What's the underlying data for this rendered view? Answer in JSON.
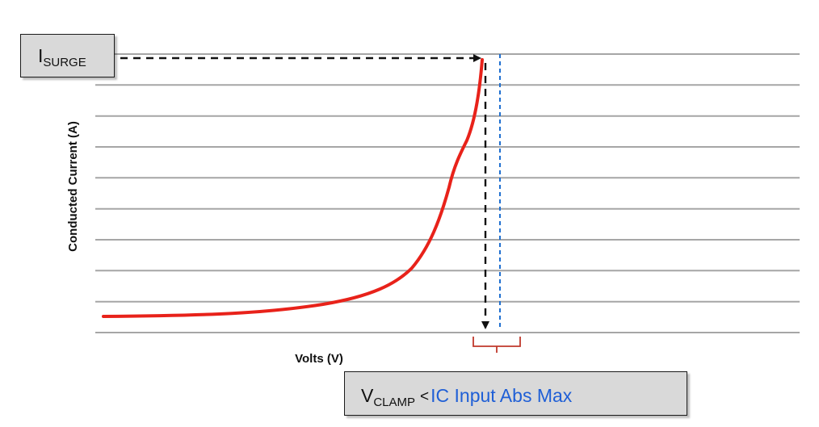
{
  "chart_data": {
    "type": "line",
    "title": "",
    "xlabel": "Volts (V)",
    "ylabel": "Conducted Current (A)",
    "gridlines": 10,
    "legend": "none",
    "series": [
      {
        "color": "#e8221a"
      }
    ]
  },
  "annotations": {
    "isurge": {
      "main": "I",
      "sub": "SURGE"
    },
    "vclamp": {
      "main": "V",
      "sub": "CLAMP",
      "lt": "<",
      "limit": "IC Input Abs Max"
    },
    "colors": {
      "curve": "#e8221a",
      "limit_line": "#1f6fd0",
      "limit_text": "#1f5fd6",
      "bracket": "#c0392b"
    }
  }
}
